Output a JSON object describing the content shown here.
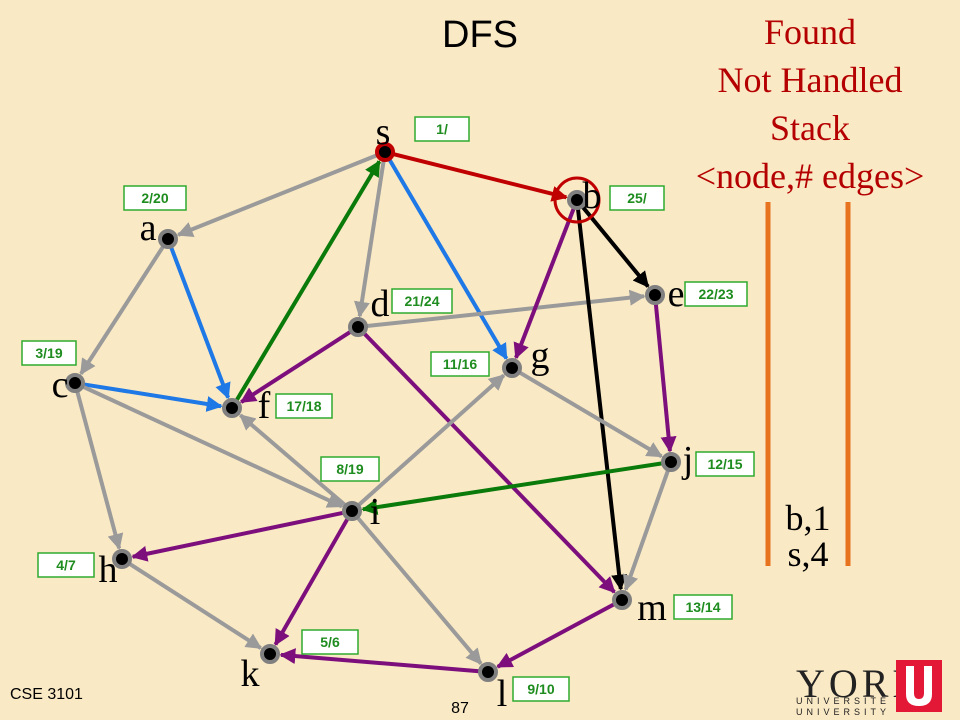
{
  "slide": {
    "title": "DFS",
    "footer": "CSE 3101",
    "page_number": "87",
    "logo": {
      "word": "YORK",
      "line1": "UNIVERSITÉ",
      "line2": "UNIVERSITY",
      "color": "#E31837"
    }
  },
  "legend": {
    "lines": [
      "Found",
      "Not Handled",
      "Stack",
      "<node,# edges>"
    ],
    "color": "#B40000",
    "bar_color": "#E8731E"
  },
  "stack": [
    "b,1",
    "s,4"
  ],
  "colors": {
    "gray": "#9A9A9A",
    "red": "#C00000",
    "blue": "#1E78E6",
    "green": "#0A7A0A",
    "purple": "#7D0F7D",
    "black": "#000000",
    "badge_fill": "#FFFFFF",
    "badge_border": "#2EAA2E",
    "badge_text": "#1E8C1E",
    "node_ring": "#808080",
    "current_ring": "#C00000"
  },
  "nodes": [
    {
      "id": "s",
      "label": "s",
      "time": "1/",
      "current_color": "red"
    },
    {
      "id": "a",
      "label": "a",
      "time": "2/20"
    },
    {
      "id": "b",
      "label": "b",
      "time": "25/",
      "highlighted": true
    },
    {
      "id": "c",
      "label": "c",
      "time": "3/19"
    },
    {
      "id": "d",
      "label": "d",
      "time": "21/24"
    },
    {
      "id": "e",
      "label": "e",
      "time": "22/23"
    },
    {
      "id": "f",
      "label": "f",
      "time": "17/18"
    },
    {
      "id": "g",
      "label": "g",
      "time": "11/16"
    },
    {
      "id": "h",
      "label": "h",
      "time": "4/7"
    },
    {
      "id": "i",
      "label": "i",
      "time": "8/19"
    },
    {
      "id": "j",
      "label": "j",
      "time": "12/15"
    },
    {
      "id": "k",
      "label": "k",
      "time": "5/6"
    },
    {
      "id": "l",
      "label": "l",
      "time": "9/10"
    },
    {
      "id": "m",
      "label": "m",
      "time": "13/14"
    }
  ],
  "edges": [
    {
      "from": "s",
      "to": "a",
      "color": "gray"
    },
    {
      "from": "s",
      "to": "d",
      "color": "gray"
    },
    {
      "from": "s",
      "to": "g",
      "color": "blue"
    },
    {
      "from": "s",
      "to": "b",
      "color": "red"
    },
    {
      "from": "a",
      "to": "c",
      "color": "gray"
    },
    {
      "from": "a",
      "to": "f",
      "color": "blue"
    },
    {
      "from": "c",
      "to": "f",
      "color": "blue"
    },
    {
      "from": "c",
      "to": "h",
      "color": "gray"
    },
    {
      "from": "c",
      "to": "i",
      "color": "gray"
    },
    {
      "from": "f",
      "to": "s",
      "color": "green"
    },
    {
      "from": "d",
      "to": "f",
      "color": "purple"
    },
    {
      "from": "d",
      "to": "e",
      "color": "gray"
    },
    {
      "from": "d",
      "to": "m",
      "color": "purple"
    },
    {
      "from": "b",
      "to": "g",
      "color": "purple"
    },
    {
      "from": "b",
      "to": "e",
      "color": "black"
    },
    {
      "from": "b",
      "to": "m",
      "color": "black"
    },
    {
      "from": "e",
      "to": "j",
      "color": "purple"
    },
    {
      "from": "g",
      "to": "j",
      "color": "gray"
    },
    {
      "from": "j",
      "to": "i",
      "color": "green"
    },
    {
      "from": "j",
      "to": "m",
      "color": "gray"
    },
    {
      "from": "i",
      "to": "g",
      "color": "gray"
    },
    {
      "from": "i",
      "to": "f",
      "color": "gray"
    },
    {
      "from": "i",
      "to": "h",
      "color": "purple"
    },
    {
      "from": "i",
      "to": "k",
      "color": "purple"
    },
    {
      "from": "i",
      "to": "l",
      "color": "gray"
    },
    {
      "from": "h",
      "to": "k",
      "color": "gray"
    },
    {
      "from": "m",
      "to": "l",
      "color": "purple"
    },
    {
      "from": "l",
      "to": "k",
      "color": "purple"
    }
  ]
}
